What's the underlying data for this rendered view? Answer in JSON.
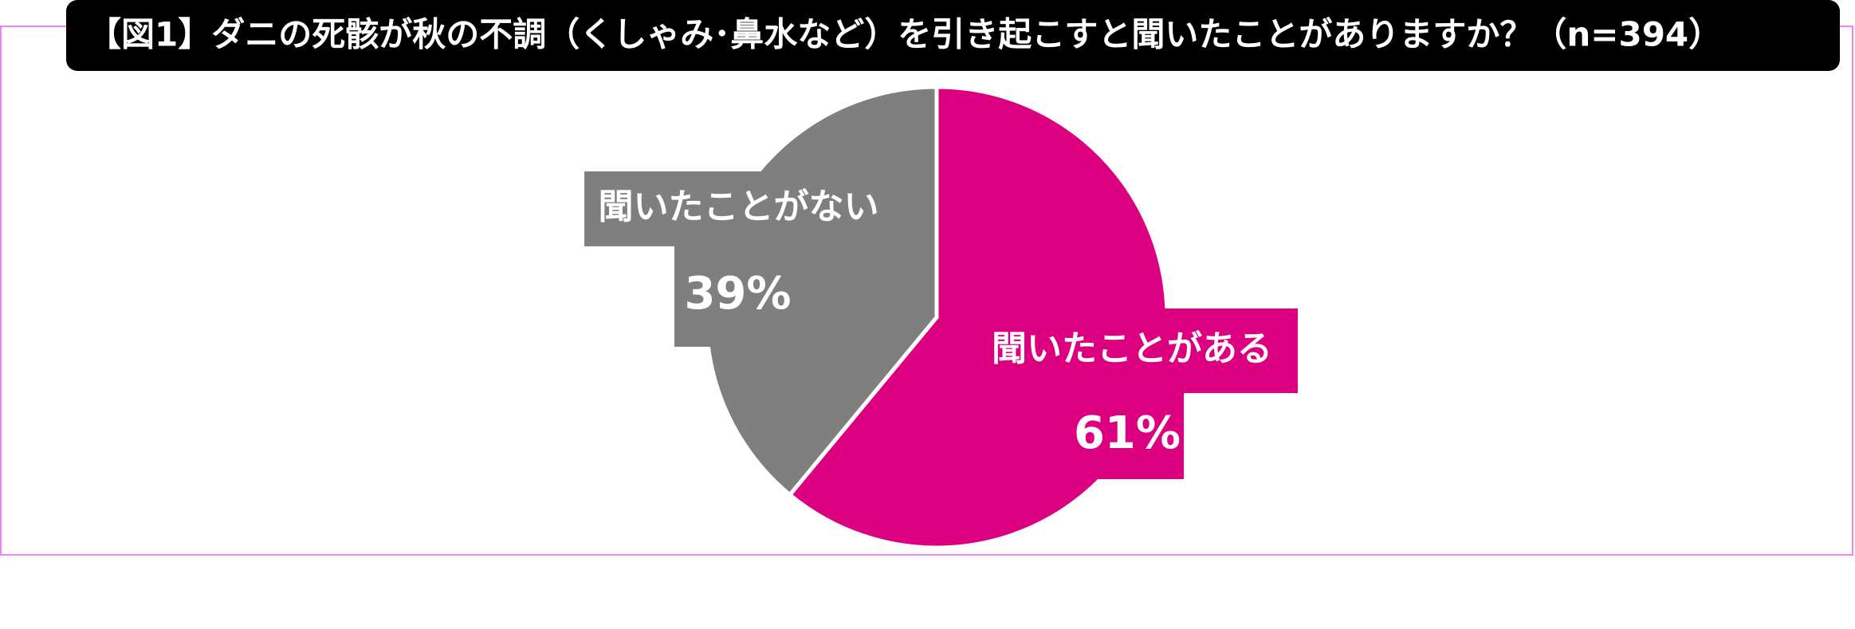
{
  "chart_data": {
    "type": "pie",
    "title": "【図1】ダニの死骸が秋の不調（くしゃみ･鼻水など）を引き起こすと聞いたことがありますか？（n=394）",
    "categories": [
      "聞いたことがある",
      "聞いたことがない"
    ],
    "values": [
      61,
      39
    ],
    "value_labels": [
      "61%",
      "39%"
    ],
    "colors": [
      "#dc0080",
      "#7f7f7f"
    ]
  }
}
